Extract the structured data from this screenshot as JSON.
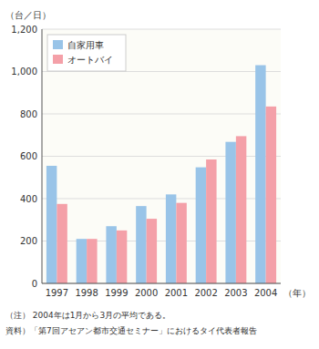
{
  "chart_data": {
    "type": "bar",
    "categories": [
      "1997",
      "1998",
      "1999",
      "2000",
      "2001",
      "2002",
      "2003",
      "2004"
    ],
    "series": [
      {
        "name": "自家用車",
        "color": "#99c4e8",
        "values": [
          555,
          210,
          270,
          365,
          420,
          548,
          668,
          1030
        ]
      },
      {
        "name": "オートバイ",
        "color": "#f4a0a8",
        "values": [
          375,
          210,
          250,
          305,
          380,
          585,
          695,
          835
        ]
      }
    ],
    "ylabel": "（台／日）",
    "xlabel": "（年）",
    "annotations": [
      "（注） 2004年は1月から3月の平均である。",
      "資料）「第7回アセアン都市交通セミナー」におけるタイ代表者報告"
    ],
    "ylim": [
      0,
      1200
    ],
    "yticks": [
      0,
      200,
      400,
      600,
      800,
      {
        "value": 1000,
        "label": "1,000"
      },
      {
        "value": 1200,
        "label": "1,200"
      }
    ],
    "grid": true,
    "legend": "upper left"
  }
}
